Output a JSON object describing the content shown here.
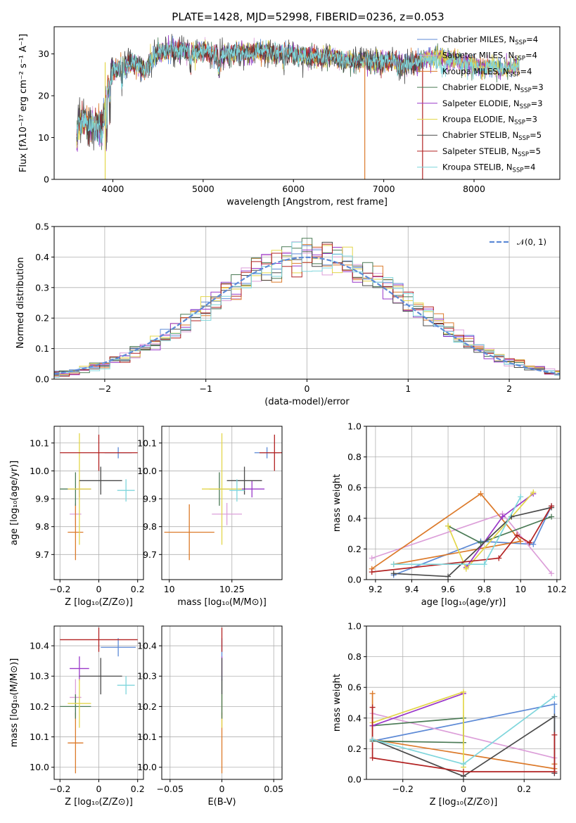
{
  "chart_data": [
    {
      "id": "spectrum",
      "type": "line",
      "title": "PLATE=1428, MJD=52998, FIBERID=0236, z=0.053",
      "xlabel": "wavelength [Angstrom, rest frame]",
      "ylabel": "Flux [fλ10⁻¹⁷ erg cm⁻² s⁻¹ A⁻¹]",
      "xlim": [
        3350,
        8950
      ],
      "ylim": [
        0,
        36.5
      ],
      "xticks": [
        4000,
        5000,
        6000,
        7000,
        8000
      ],
      "yticks": [
        0,
        10,
        20,
        30
      ],
      "grid": false,
      "legend_position": "top-right",
      "continuum": [
        [
          3600,
          10
        ],
        [
          3620,
          14
        ],
        [
          3700,
          13.5
        ],
        [
          3800,
          12.5
        ],
        [
          3850,
          13
        ],
        [
          3880,
          12
        ],
        [
          3930,
          20
        ],
        [
          3950,
          22
        ],
        [
          4000,
          26
        ],
        [
          4100,
          27
        ],
        [
          4200,
          28
        ],
        [
          4300,
          27
        ],
        [
          4350,
          26
        ],
        [
          4450,
          29
        ],
        [
          4500,
          30
        ],
        [
          4600,
          30.5
        ],
        [
          4700,
          31
        ],
        [
          4800,
          31
        ],
        [
          4900,
          30.5
        ],
        [
          5000,
          30.5
        ],
        [
          5100,
          30
        ],
        [
          5200,
          29.5
        ],
        [
          5300,
          30
        ],
        [
          5400,
          30.5
        ],
        [
          5500,
          30
        ],
        [
          5600,
          30.5
        ],
        [
          5700,
          30.5
        ],
        [
          5800,
          30
        ],
        [
          5900,
          30.5
        ],
        [
          6000,
          30
        ],
        [
          6100,
          29.5
        ],
        [
          6200,
          29.5
        ],
        [
          6300,
          29
        ],
        [
          6400,
          29.5
        ],
        [
          6500,
          29
        ],
        [
          6600,
          28.5
        ],
        [
          6700,
          28.5
        ],
        [
          6800,
          28.5
        ],
        [
          6900,
          28
        ],
        [
          7000,
          28
        ],
        [
          7100,
          28.5
        ],
        [
          7200,
          27
        ],
        [
          7300,
          27.5
        ],
        [
          7400,
          28
        ],
        [
          7500,
          29
        ],
        [
          7600,
          29.5
        ],
        [
          7700,
          28.5
        ],
        [
          7800,
          28.5
        ],
        [
          7900,
          27.5
        ],
        [
          8000,
          27.5
        ],
        [
          8100,
          26.5
        ],
        [
          8200,
          27
        ],
        [
          8300,
          26
        ],
        [
          8400,
          27
        ],
        [
          8500,
          27
        ]
      ],
      "series": [
        {
          "name": "Chabrier MILES, N_SSP=4",
          "color": "#5d8ad6"
        },
        {
          "name": "Salpeter MILES, N_SSP=4",
          "color": "#dc9fd9"
        },
        {
          "name": "Kroupa MILES, N_SSP=4",
          "color": "#dc7a2a"
        },
        {
          "name": "Chabrier ELODIE, N_SSP=3",
          "color": "#4a7a55"
        },
        {
          "name": "Salpeter ELODIE, N_SSP=3",
          "color": "#9a38c9"
        },
        {
          "name": "Kroupa ELODIE, N_SSP=3",
          "color": "#e3d64a"
        },
        {
          "name": "Chabrier STELIB, N_SSP=5",
          "color": "#4a4a4a"
        },
        {
          "name": "Salpeter STELIB, N_SSP=5",
          "color": "#b22222"
        },
        {
          "name": "Kroupa STELIB, N_SSP=4",
          "color": "#7fd6dc"
        }
      ]
    },
    {
      "id": "residuals",
      "type": "histogram",
      "xlabel": "(data-model)/error",
      "ylabel": "Normed distribution",
      "xlim": [
        -2.5,
        2.5
      ],
      "ylim": [
        0,
        0.5
      ],
      "xticks": [
        -2,
        -1,
        0,
        1,
        2
      ],
      "yticks": [
        0.0,
        0.1,
        0.2,
        0.3,
        0.4,
        0.5
      ],
      "grid": true,
      "legend_position": "top-right",
      "legend_label": "𝒩(0, 1)",
      "reference_curve": "normal(0,1)",
      "bin_width": 0.1
    },
    {
      "id": "age-vs-z",
      "type": "errorbar",
      "xlabel": "Z [log₁₀(Z/Z⊙)]",
      "ylabel": "age  [log₁₀(age/yr)]",
      "xlim": [
        -0.23,
        0.23
      ],
      "ylim": [
        9.61,
        10.16
      ],
      "xticks": [
        -0.2,
        0.0,
        0.2
      ],
      "yticks": [
        9.7,
        9.8,
        9.9,
        10.0,
        10.1
      ],
      "grid": true,
      "points": [
        {
          "color": "#5d8ad6",
          "x": 0.1,
          "xerr": 0.07,
          "y": 10.065,
          "yerr": 0.02
        },
        {
          "color": "#dc9fd9",
          "x": -0.12,
          "xerr": 0.03,
          "y": 9.845,
          "yerr": 0.04
        },
        {
          "color": "#dc7a2a",
          "x": -0.12,
          "xerr": 0.04,
          "y": 9.78,
          "yerr": 0.1
        },
        {
          "color": "#4a7a55",
          "x": -0.12,
          "xerr": 0.08,
          "y": 9.935,
          "yerr": 0.06
        },
        {
          "color": "#9a38c9",
          "x": -0.1,
          "xerr": 0.06,
          "y": 9.935,
          "yerr": 0.03
        },
        {
          "color": "#e3d64a",
          "x": -0.1,
          "xerr": 0.06,
          "y": 9.935,
          "yerr": 0.2
        },
        {
          "color": "#4a4a4a",
          "x": 0.01,
          "xerr": 0.11,
          "y": 9.965,
          "yerr": 0.05
        },
        {
          "color": "#b22222",
          "x": 0.0,
          "xerr": 0.2,
          "y": 10.065,
          "yerr": 0.065
        },
        {
          "color": "#7fd6dc",
          "x": 0.14,
          "xerr": 0.045,
          "y": 9.93,
          "yerr": 0.04
        }
      ]
    },
    {
      "id": "age-vs-mass",
      "type": "errorbar",
      "xlabel": "mass [log₁₀(M/M⊙)]",
      "ylabel": "",
      "xlim": [
        9.97,
        10.45
      ],
      "ylim": [
        9.61,
        10.16
      ],
      "xticks": [
        10.0,
        10.25
      ],
      "yticks": [
        9.7,
        9.8,
        9.9,
        10.0,
        10.1
      ],
      "grid": true,
      "points": [
        {
          "color": "#5d8ad6",
          "x": 10.39,
          "xerr": 0.05,
          "y": 10.065,
          "yerr": 0.02
        },
        {
          "color": "#dc9fd9",
          "x": 10.23,
          "xerr": 0.06,
          "y": 9.845,
          "yerr": 0.04
        },
        {
          "color": "#dc7a2a",
          "x": 10.08,
          "xerr": 0.1,
          "y": 9.78,
          "yerr": 0.1
        },
        {
          "color": "#4a7a55",
          "x": 10.2,
          "xerr": 0.04,
          "y": 9.935,
          "yerr": 0.06
        },
        {
          "color": "#9a38c9",
          "x": 10.33,
          "xerr": 0.05,
          "y": 9.935,
          "yerr": 0.03
        },
        {
          "color": "#e3d64a",
          "x": 10.21,
          "xerr": 0.08,
          "y": 9.935,
          "yerr": 0.2
        },
        {
          "color": "#4a4a4a",
          "x": 10.3,
          "xerr": 0.07,
          "y": 9.965,
          "yerr": 0.05
        },
        {
          "color": "#b22222",
          "x": 10.42,
          "xerr": 0.06,
          "y": 10.065,
          "yerr": 0.065
        },
        {
          "color": "#7fd6dc",
          "x": 10.27,
          "xerr": 0.03,
          "y": 9.93,
          "yerr": 0.04
        }
      ]
    },
    {
      "id": "weight-vs-age",
      "type": "line",
      "xlabel": "age  [log₁₀(age/yr)]",
      "ylabel": "mass weight",
      "xlim": [
        9.15,
        10.22
      ],
      "ylim": [
        0,
        1.0
      ],
      "xticks": [
        9.2,
        9.4,
        9.6,
        9.8,
        10.0,
        10.2
      ],
      "yticks": [
        0.0,
        0.2,
        0.4,
        0.6,
        0.8,
        1.0
      ],
      "grid": true,
      "series": [
        {
          "color": "#5d8ad6",
          "x": [
            9.3,
            9.78,
            10.07,
            10.17
          ],
          "y": [
            0.03,
            0.25,
            0.23,
            0.48
          ]
        },
        {
          "color": "#dc9fd9",
          "x": [
            9.18,
            9.9,
            10.17
          ],
          "y": [
            0.14,
            0.43,
            0.04
          ]
        },
        {
          "color": "#dc7a2a",
          "x": [
            9.18,
            9.78,
            10.0,
            9.3
          ],
          "y": [
            0.07,
            0.56,
            0.25,
            0.1
          ]
        },
        {
          "color": "#4a7a55",
          "x": [
            9.6,
            9.78,
            10.17
          ],
          "y": [
            0.35,
            0.24,
            0.41
          ]
        },
        {
          "color": "#9a38c9",
          "x": [
            9.7,
            9.9,
            10.07
          ],
          "y": [
            0.08,
            0.41,
            0.56
          ]
        },
        {
          "color": "#e3d64a",
          "x": [
            9.6,
            9.7,
            10.07
          ],
          "y": [
            0.35,
            0.07,
            0.57
          ]
        },
        {
          "color": "#4a4a4a",
          "x": [
            9.3,
            9.6,
            9.95,
            10.17
          ],
          "y": [
            0.04,
            0.02,
            0.41,
            0.47
          ]
        },
        {
          "color": "#b22222",
          "x": [
            9.18,
            9.88,
            9.98,
            10.05,
            10.17
          ],
          "y": [
            0.05,
            0.14,
            0.29,
            0.24,
            0.48
          ]
        },
        {
          "color": "#7fd6dc",
          "x": [
            9.3,
            9.8,
            10.0
          ],
          "y": [
            0.1,
            0.1,
            0.54
          ]
        }
      ]
    },
    {
      "id": "mass-vs-z",
      "type": "errorbar",
      "xlabel": "Z [log₁₀(Z/Z⊙)]",
      "ylabel": "mass [log₁₀(M/M⊙)]",
      "xlim": [
        -0.23,
        0.23
      ],
      "ylim": [
        9.96,
        10.465
      ],
      "xticks": [
        -0.2,
        0.0,
        0.2
      ],
      "yticks": [
        10.0,
        10.1,
        10.2,
        10.3,
        10.4
      ],
      "grid": true,
      "points": [
        {
          "color": "#5d8ad6",
          "x": 0.1,
          "xerr": 0.09,
          "y": 10.395,
          "yerr": 0.03
        },
        {
          "color": "#dc9fd9",
          "x": -0.12,
          "xerr": 0.03,
          "y": 10.23,
          "yerr": 0.06
        },
        {
          "color": "#dc7a2a",
          "x": -0.12,
          "xerr": 0.04,
          "y": 10.08,
          "yerr": 0.1
        },
        {
          "color": "#4a7a55",
          "x": -0.12,
          "xerr": 0.08,
          "y": 10.2,
          "yerr": 0.04
        },
        {
          "color": "#9a38c9",
          "x": -0.1,
          "xerr": 0.05,
          "y": 10.325,
          "yerr": 0.04
        },
        {
          "color": "#e3d64a",
          "x": -0.1,
          "xerr": 0.06,
          "y": 10.21,
          "yerr": 0.08
        },
        {
          "color": "#4a4a4a",
          "x": 0.01,
          "xerr": 0.11,
          "y": 10.3,
          "yerr": 0.06
        },
        {
          "color": "#b22222",
          "x": 0.0,
          "xerr": 0.2,
          "y": 10.42,
          "yerr": 0.04
        },
        {
          "color": "#7fd6dc",
          "x": 0.14,
          "xerr": 0.045,
          "y": 10.27,
          "yerr": 0.03
        }
      ]
    },
    {
      "id": "mass-vs-ebv",
      "type": "errorbar",
      "xlabel": "E(B-V)",
      "ylabel": "",
      "xlim": [
        -0.058,
        0.058
      ],
      "ylim": [
        9.96,
        10.465
      ],
      "xticks": [
        -0.05,
        0.0,
        0.05
      ],
      "yticks": [
        10.0,
        10.1,
        10.2,
        10.3,
        10.4
      ],
      "grid": true,
      "points": [
        {
          "color": "#dc7a2a",
          "x": 0.0,
          "xerr": 0.0,
          "y": 10.08,
          "yerr": 0.1
        },
        {
          "color": "#dc9fd9",
          "x": 0.0,
          "xerr": 0.0,
          "y": 10.23,
          "yerr": 0.06
        },
        {
          "color": "#e3d64a",
          "x": 0.0,
          "xerr": 0.0,
          "y": 10.21,
          "yerr": 0.08
        },
        {
          "color": "#4a7a55",
          "x": 0.0,
          "xerr": 0.0,
          "y": 10.2,
          "yerr": 0.04
        },
        {
          "color": "#5d8ad6",
          "x": 0.0,
          "xerr": 0.0,
          "y": 10.395,
          "yerr": 0.03
        },
        {
          "color": "#9a38c9",
          "x": 0.0,
          "xerr": 0.0,
          "y": 10.325,
          "yerr": 0.04
        },
        {
          "color": "#7fd6dc",
          "x": 0.0,
          "xerr": 0.0,
          "y": 10.27,
          "yerr": 0.03
        },
        {
          "color": "#4a4a4a",
          "x": 0.0,
          "xerr": 0.0,
          "y": 10.3,
          "yerr": 0.06
        },
        {
          "color": "#b22222",
          "x": 0.0,
          "xerr": 0.0,
          "y": 10.42,
          "yerr": 0.04
        }
      ]
    },
    {
      "id": "weight-vs-z",
      "type": "line",
      "xlabel": "Z [log₁₀(Z/Z⊙)]",
      "ylabel": "mass weight",
      "xlim": [
        -0.32,
        0.32
      ],
      "ylim": [
        0,
        1.0
      ],
      "xticks": [
        -0.2,
        0.0,
        0.2
      ],
      "yticks": [
        0.0,
        0.2,
        0.4,
        0.6,
        0.8,
        1.0
      ],
      "grid": true,
      "series": [
        {
          "color": "#5d8ad6",
          "x": [
            -0.3,
            0.3,
            0.3
          ],
          "y": [
            0.25,
            0.49,
            0.04
          ]
        },
        {
          "color": "#dc9fd9",
          "x": [
            -0.3,
            0.3,
            0.3
          ],
          "y": [
            0.43,
            0.14,
            0.04
          ]
        },
        {
          "color": "#dc7a2a",
          "x": [
            -0.3,
            -0.3,
            0.3,
            0.3
          ],
          "y": [
            0.56,
            0.26,
            0.07,
            0.1
          ]
        },
        {
          "color": "#4a7a55",
          "x": [
            -0.3,
            0.0,
            0.0,
            -0.3
          ],
          "y": [
            0.35,
            0.4,
            0.24,
            0.25
          ]
        },
        {
          "color": "#9a38c9",
          "x": [
            -0.3,
            0.0
          ],
          "y": [
            0.35,
            0.56
          ]
        },
        {
          "color": "#e3d64a",
          "x": [
            -0.3,
            0.0,
            0.0
          ],
          "y": [
            0.37,
            0.57,
            0.08
          ]
        },
        {
          "color": "#4a4a4a",
          "x": [
            -0.3,
            0.0,
            0.3,
            0.3
          ],
          "y": [
            0.26,
            0.02,
            0.41,
            0.04
          ]
        },
        {
          "color": "#b22222",
          "x": [
            -0.3,
            -0.3,
            0.0,
            0.3,
            0.3
          ],
          "y": [
            0.47,
            0.14,
            0.05,
            0.05,
            0.29
          ]
        },
        {
          "color": "#7fd6dc",
          "x": [
            -0.3,
            0.0,
            0.3
          ],
          "y": [
            0.26,
            0.1,
            0.54
          ]
        }
      ]
    }
  ]
}
